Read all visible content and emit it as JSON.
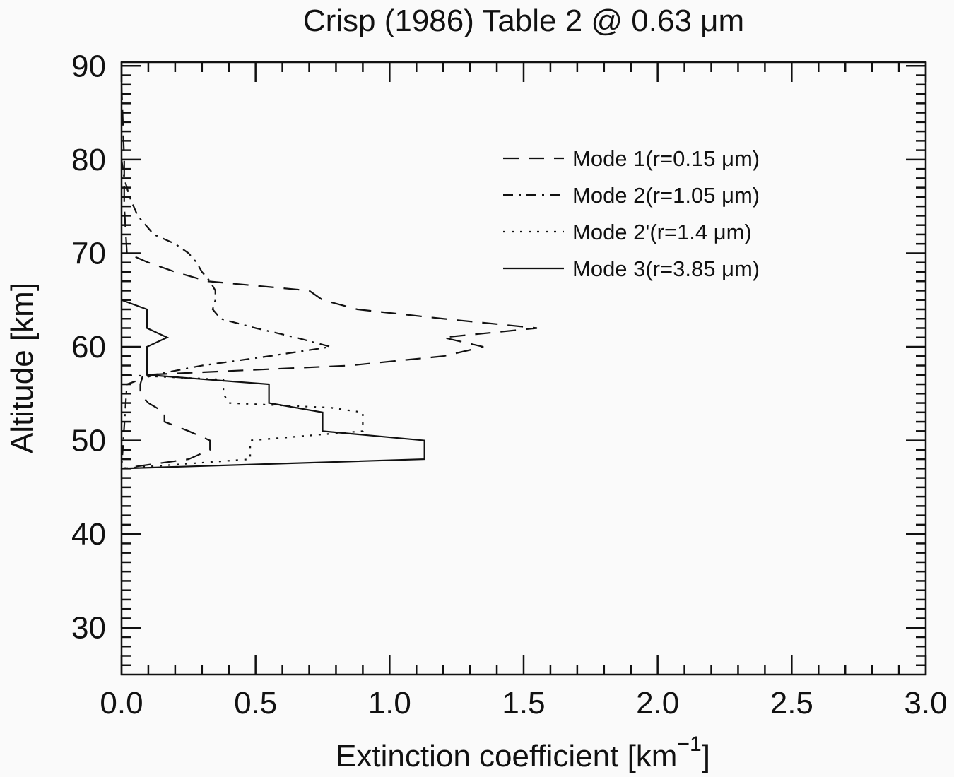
{
  "chart_data": {
    "type": "line",
    "title": "Crisp (1986) Table 2 @ 0.63 μm",
    "xlabel": "Extinction coefficient [km",
    "xlabel_sup": "−1",
    "xlabel_end": "]",
    "ylabel": "Altitude [km]",
    "xlim": [
      0,
      3.0
    ],
    "ylim": [
      25,
      90.4
    ],
    "xticks": [
      "0.0",
      "0.5",
      "1.0",
      "1.5",
      "2.0",
      "2.5",
      "3.0"
    ],
    "yticks": [
      "30",
      "40",
      "50",
      "60",
      "70",
      "80",
      "90"
    ],
    "grid": false,
    "legend_position": "top-right",
    "series": [
      {
        "name": "Mode 1(r=0.15 μm)",
        "style": "dashed",
        "altitude": [
          88,
          80,
          75,
          70,
          69,
          68,
          67,
          66,
          65,
          64,
          63,
          62,
          61,
          60,
          59,
          58,
          57,
          56,
          55,
          54,
          53,
          52,
          51,
          50,
          49,
          48,
          47,
          45,
          40,
          35,
          30
        ],
        "extinction": [
          0,
          0.01,
          0.01,
          0.02,
          0.1,
          0.2,
          0.32,
          0.7,
          0.75,
          0.88,
          1.2,
          1.55,
          1.2,
          1.35,
          1.2,
          0.85,
          0.08,
          0.07,
          0.07,
          0.1,
          0.16,
          0.16,
          0.25,
          0.33,
          0.33,
          0.25,
          0,
          0,
          0,
          0,
          0
        ]
      },
      {
        "name": "Mode 2(r=1.05 μm)",
        "style": "dashdot",
        "altitude": [
          80,
          78,
          76,
          74,
          72,
          71,
          70,
          69,
          68,
          67,
          66,
          65,
          64,
          63,
          62,
          61,
          60,
          59,
          58,
          57,
          56,
          47
        ],
        "extinction": [
          0,
          0.01,
          0.03,
          0.06,
          0.12,
          0.2,
          0.25,
          0.28,
          0.3,
          0.33,
          0.35,
          0.35,
          0.34,
          0.37,
          0.5,
          0.65,
          0.78,
          0.55,
          0.3,
          0.12,
          0.02,
          0
        ]
      },
      {
        "name": "Mode 2'(r=1.4 μm)",
        "style": "dotted",
        "altitude": [
          57,
          56.5,
          55,
          54,
          53.5,
          53,
          52,
          51,
          50,
          49,
          48,
          47
        ],
        "extinction": [
          0,
          0.38,
          0.38,
          0.4,
          0.78,
          0.9,
          0.9,
          0.9,
          0.48,
          0.48,
          0.48,
          0
        ]
      },
      {
        "name": "Mode 3(r=3.85 μm)",
        "style": "solid",
        "altitude": [
          65,
          64,
          63,
          62,
          61,
          60,
          59,
          58,
          57,
          56,
          55,
          54,
          53,
          52,
          51,
          50,
          49,
          48,
          47
        ],
        "extinction": [
          0,
          0.095,
          0.095,
          0.095,
          0.17,
          0.095,
          0.095,
          0.095,
          0.095,
          0.55,
          0.55,
          0.55,
          0.75,
          0.75,
          0.75,
          1.13,
          1.13,
          1.13,
          0
        ]
      }
    ]
  }
}
